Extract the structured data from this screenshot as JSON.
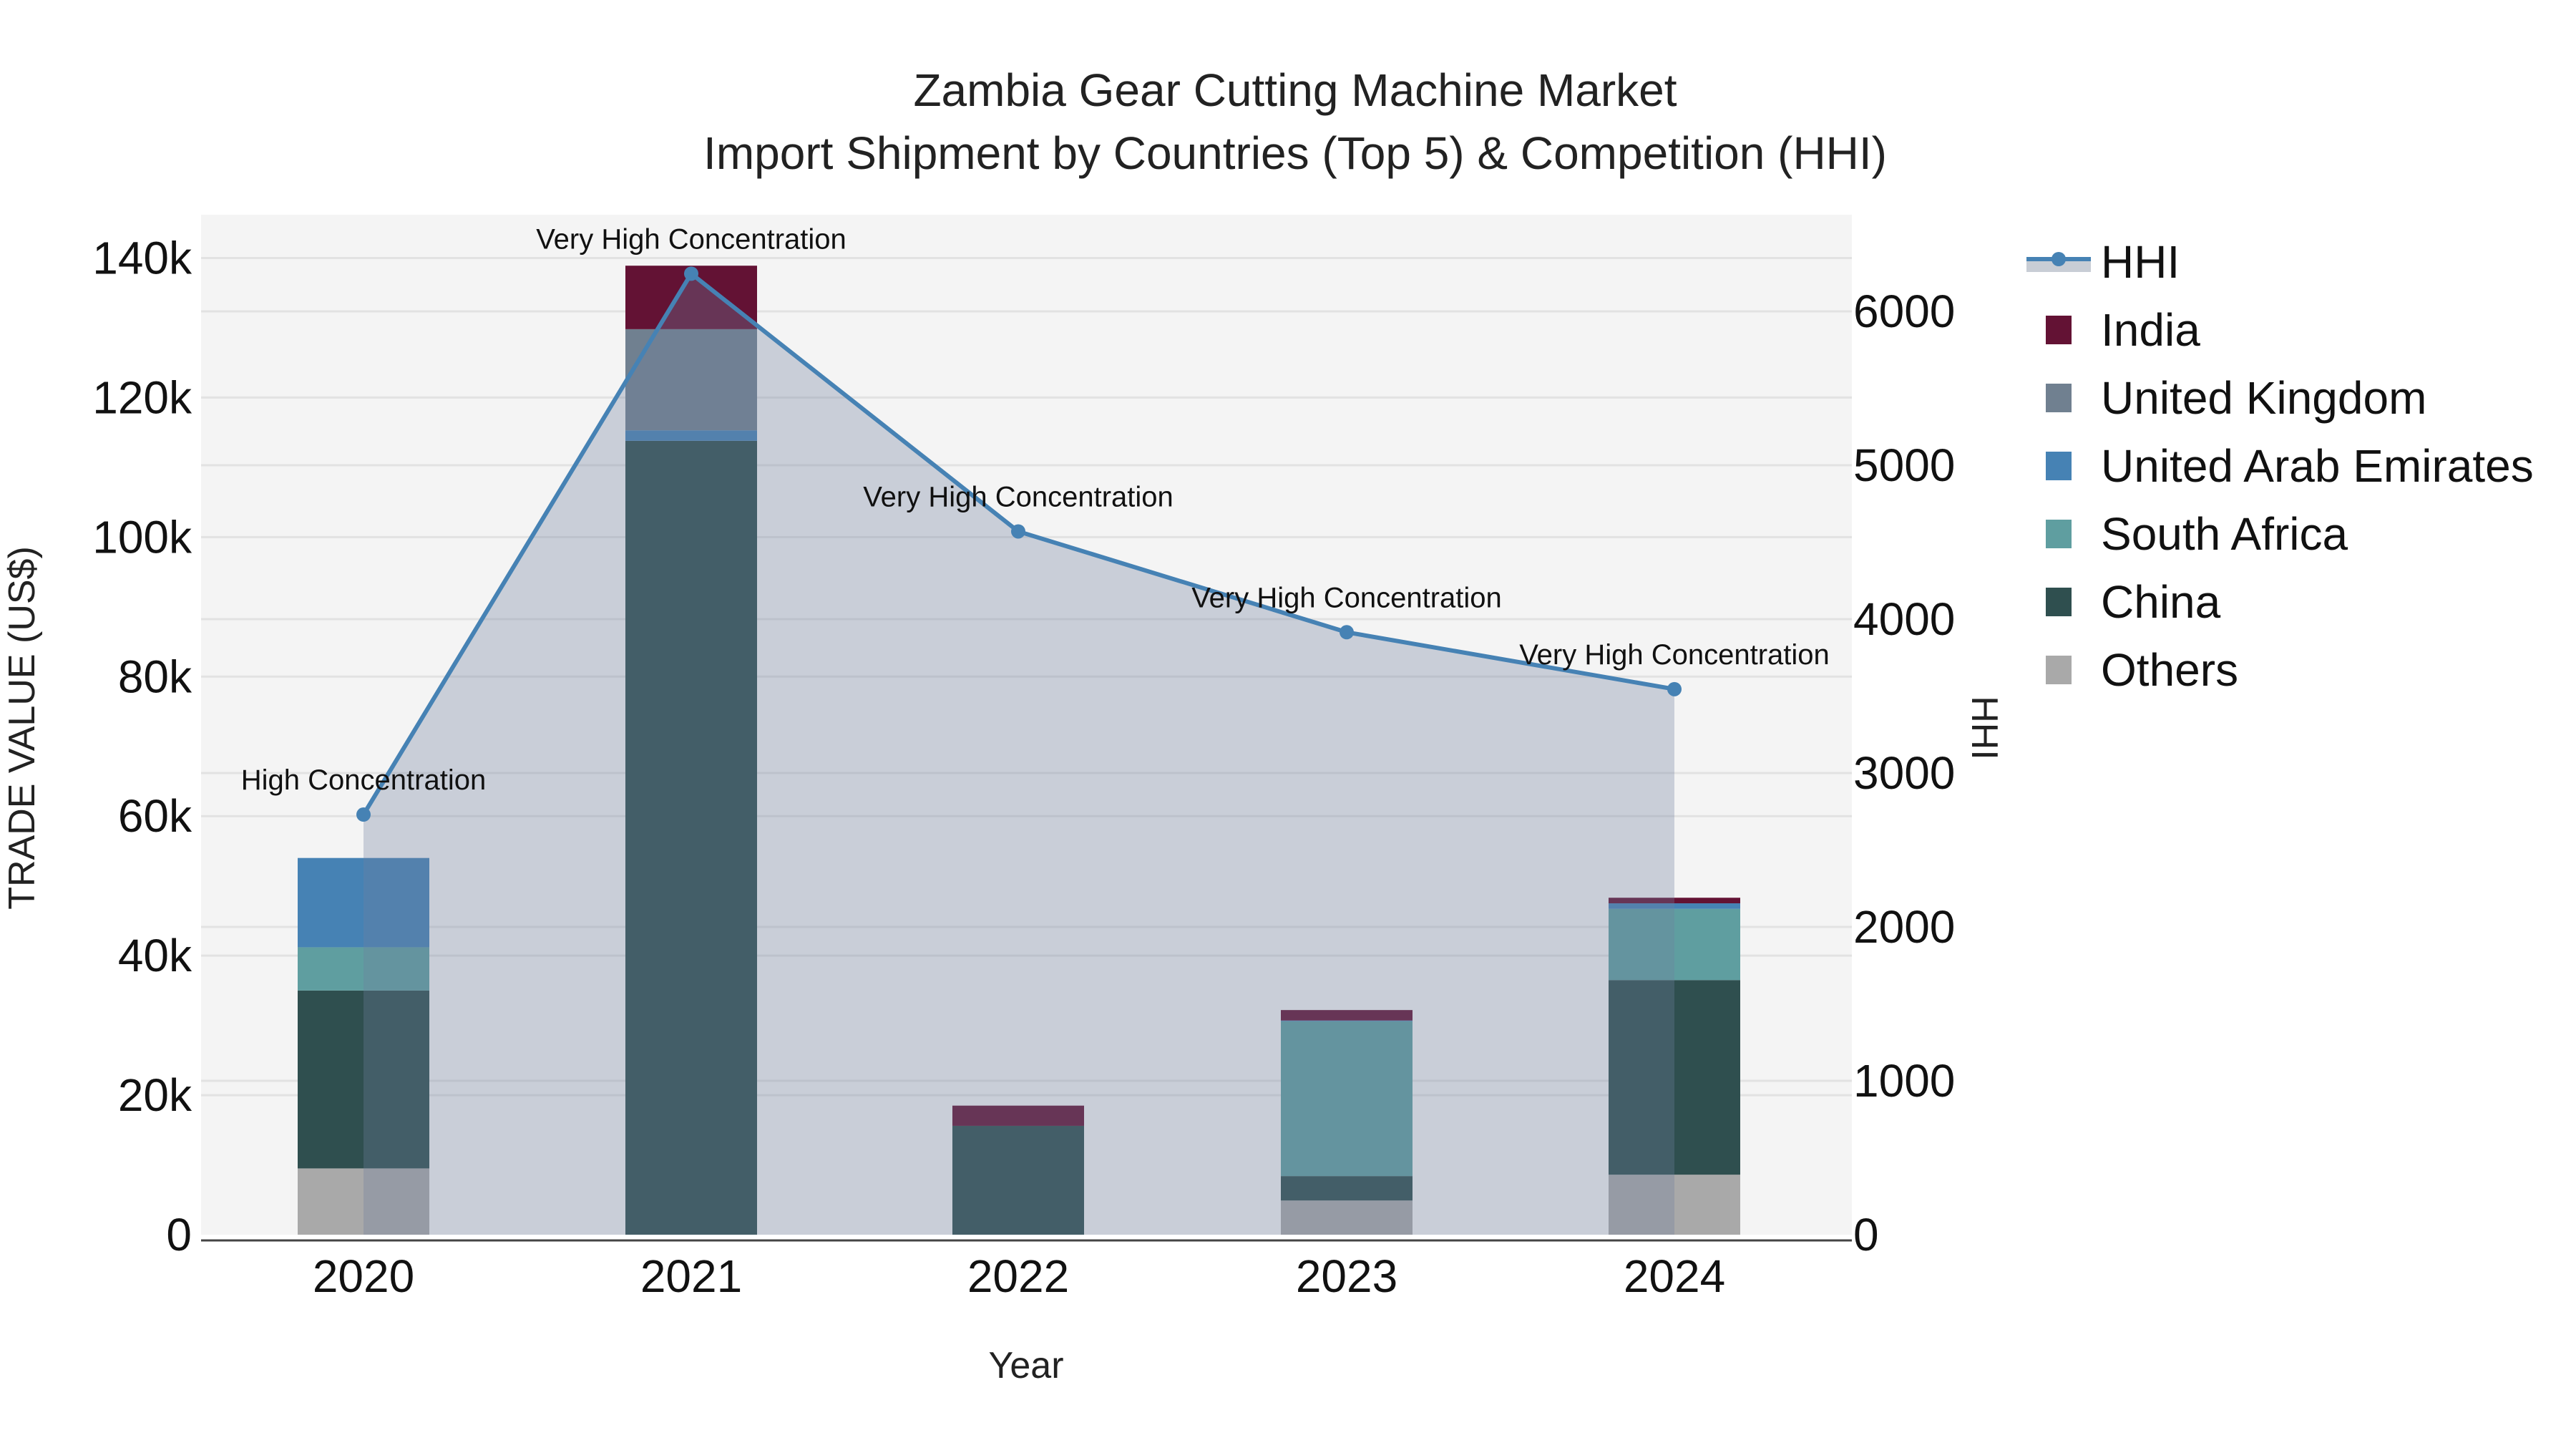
{
  "chart_data": {
    "type": "bar",
    "subtype": "stacked bar + line (dual axis)",
    "title": "Zambia Gear Cutting Machine Market",
    "subtitle": "Import Shipment by Countries (Top 5) & Competition (HHI)",
    "xlabel": "Year",
    "ylabel": "TRADE VALUE (US$)",
    "y2label": "HHI",
    "categories": [
      "2020",
      "2021",
      "2022",
      "2023",
      "2024"
    ],
    "ylim": [
      0,
      145000
    ],
    "y_ticks": [
      0,
      20000,
      40000,
      60000,
      80000,
      100000,
      120000,
      140000
    ],
    "y_tick_labels": [
      "0",
      "20k",
      "40k",
      "60k",
      "80k",
      "100k",
      "120k",
      "140k"
    ],
    "y2lim": [
      0,
      6600
    ],
    "y2_ticks": [
      0,
      1000,
      2000,
      3000,
      4000,
      5000,
      6000
    ],
    "y2_tick_labels": [
      "0",
      "1000",
      "2000",
      "3000",
      "4000",
      "5000",
      "6000"
    ],
    "grid": true,
    "legend_position": "right",
    "series": [
      {
        "name": "Others",
        "color": "#A9A9A9",
        "values": [
          9500,
          0,
          0,
          4900,
          8600
        ]
      },
      {
        "name": "China",
        "color": "#2F4F4F",
        "values": [
          25500,
          113800,
          15600,
          3500,
          27900
        ]
      },
      {
        "name": "South Africa",
        "color": "#5F9EA0",
        "values": [
          6200,
          0,
          0,
          22200,
          10200
        ]
      },
      {
        "name": "United Arab Emirates",
        "color": "#4682B4",
        "values": [
          12800,
          1500,
          0,
          100,
          800
        ]
      },
      {
        "name": "United Kingdom",
        "color": "#708090",
        "values": [
          0,
          14500,
          0,
          0,
          0
        ]
      },
      {
        "name": "India",
        "color": "#631234",
        "values": [
          0,
          9100,
          2900,
          1500,
          800
        ]
      }
    ],
    "line_series": {
      "name": "HHI",
      "axis": "y2",
      "color": "#4682B4",
      "fill_color": "rgba(112,128,160,0.32)",
      "values": [
        2730,
        6245,
        4570,
        3915,
        3545
      ],
      "annotations": [
        "High Concentration",
        "Very High Concentration",
        "Very High Concentration",
        "Very High Concentration",
        "Very High Concentration"
      ]
    }
  },
  "legend": {
    "items": [
      {
        "name": "HHI",
        "kind": "line"
      },
      {
        "name": "India",
        "color": "#631234"
      },
      {
        "name": "United Kingdom",
        "color": "#708090"
      },
      {
        "name": "United Arab Emirates",
        "color": "#4682B4"
      },
      {
        "name": "South Africa",
        "color": "#5F9EA0"
      },
      {
        "name": "China",
        "color": "#2F4F4F"
      },
      {
        "name": "Others",
        "color": "#A9A9A9"
      }
    ]
  },
  "colors": {
    "plot_bg": "#F4F4F4",
    "grid": "#E2E2E2",
    "axis_line": "#444444"
  }
}
